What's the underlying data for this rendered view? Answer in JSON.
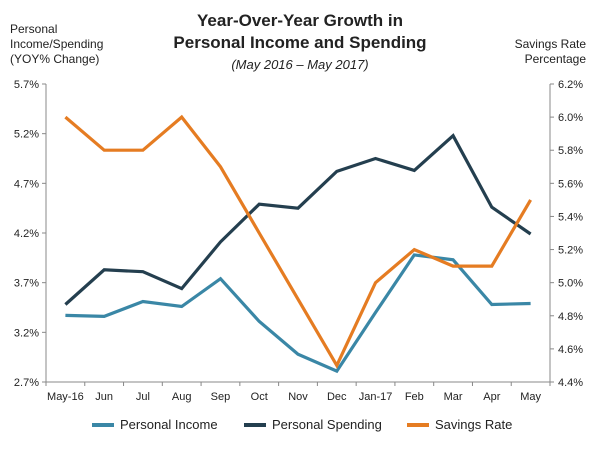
{
  "chart_data": {
    "type": "line",
    "title": "Year-Over-Year Growth in",
    "title_line2": "Personal Income and Spending",
    "subtitle": "(May 2016 – May 2017)",
    "ylabel_left": [
      "Personal",
      "Income/Spending",
      "(YOY% Change)"
    ],
    "ylabel_right": [
      "Savings Rate",
      "Percentage"
    ],
    "categories": [
      "May-16",
      "Jun",
      "Jul",
      "Aug",
      "Sep",
      "Oct",
      "Nov",
      "Dec",
      "Jan-17",
      "Feb",
      "Mar",
      "Apr",
      "May"
    ],
    "ylim_left": [
      2.7,
      5.7
    ],
    "yticks_left": [
      "2.7%",
      "3.2%",
      "3.7%",
      "4.2%",
      "4.7%",
      "5.2%",
      "5.7%"
    ],
    "ylim_right": [
      4.4,
      6.2
    ],
    "yticks_right": [
      "4.4%",
      "4.6%",
      "4.8%",
      "5.0%",
      "5.2%",
      "5.4%",
      "5.6%",
      "5.8%",
      "6.0%",
      "6.2%"
    ],
    "series": [
      {
        "name": "Personal Income",
        "axis": "left",
        "color": "#3a87a6",
        "values": [
          3.37,
          3.36,
          3.51,
          3.46,
          3.74,
          3.31,
          2.98,
          2.81,
          3.4,
          3.98,
          3.93,
          3.48,
          3.49
        ]
      },
      {
        "name": "Personal Spending",
        "axis": "left",
        "color": "#243f4f",
        "values": [
          3.48,
          3.83,
          3.81,
          3.64,
          4.11,
          4.49,
          4.45,
          4.82,
          4.95,
          4.83,
          5.18,
          4.46,
          4.19
        ]
      },
      {
        "name": "Savings Rate",
        "axis": "right",
        "color": "#e57c22",
        "values": [
          6.0,
          5.8,
          5.8,
          6.0,
          5.7,
          5.3,
          4.9,
          4.5,
          5.0,
          5.2,
          5.1,
          5.1,
          5.5
        ]
      }
    ]
  }
}
